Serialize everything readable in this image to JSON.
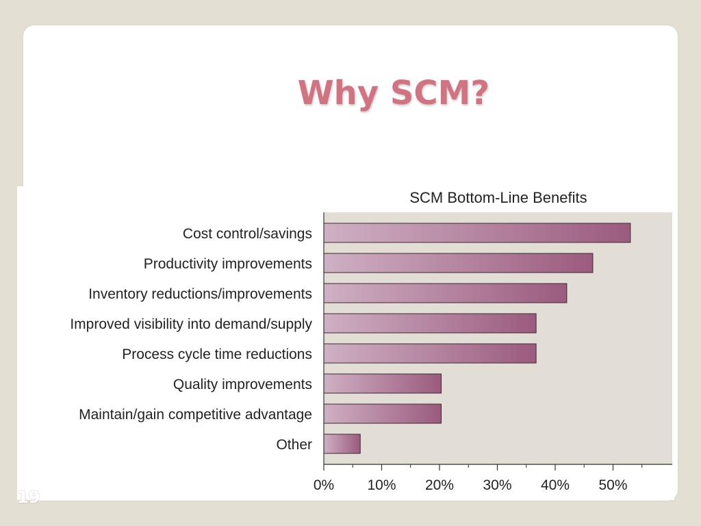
{
  "slide": {
    "title": "Why SCM?",
    "page_number": "19",
    "colors": {
      "background": "#e3dfd3",
      "title": "#d27382",
      "plot_background": "#e2ded5",
      "bar": "#a86a89"
    }
  },
  "chart_data": {
    "type": "bar",
    "orientation": "horizontal",
    "title": "SCM Bottom-Line Benefits",
    "categories": [
      "Cost control/savings",
      "Productivity improvements",
      "Inventory reductions/improvements",
      "Improved visibility into demand/supply",
      "Process cycle time reductions",
      "Quality improvements",
      "Maintain/gain competitive advantage",
      "Other"
    ],
    "values": [
      53,
      46.5,
      42,
      36.7,
      36.7,
      20.3,
      20.3,
      6.3
    ],
    "xlabel": "",
    "ylabel": "",
    "xlim": [
      0,
      60
    ],
    "xticks": [
      "0%",
      "10%",
      "20%",
      "30%",
      "40%",
      "50%"
    ],
    "grid": false,
    "legend": "none"
  }
}
